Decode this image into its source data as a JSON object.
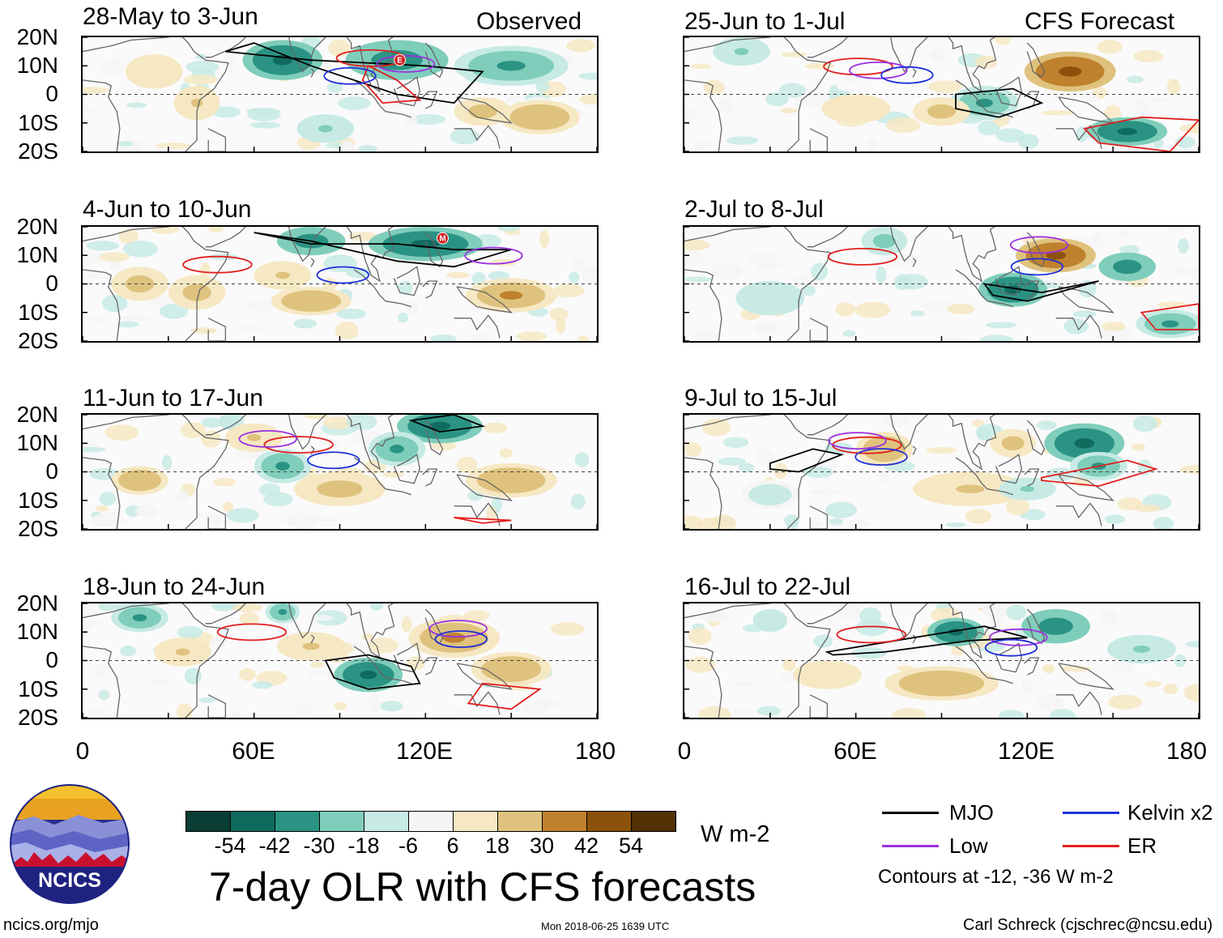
{
  "column_headers": {
    "left": "Observed",
    "right": "CFS Forecast"
  },
  "latitude_labels": [
    "20N",
    "10N",
    "0",
    "10S",
    "20S"
  ],
  "longitude_labels": [
    "0",
    "60E",
    "120E",
    "180"
  ],
  "colorbar": {
    "boundaries": [
      "-54",
      "-42",
      "-30",
      "-18",
      "-6",
      "6",
      "18",
      "30",
      "42",
      "54"
    ],
    "colors": [
      "#0a3d33",
      "#0f6b5e",
      "#2a9384",
      "#7fcdbb",
      "#c7eae5",
      "#f5f5f5",
      "#f6e8c3",
      "#dfc27d",
      "#bf812d",
      "#8c510a",
      "#543005"
    ],
    "units": "W m-2"
  },
  "main_title": "7-day OLR with CFS forecasts",
  "legend": {
    "items": [
      {
        "label": "MJO",
        "color": "#000000"
      },
      {
        "label": "Kelvin x2",
        "color": "#1f2fd8"
      },
      {
        "label": "Low",
        "color": "#9b30e0"
      },
      {
        "label": "ER",
        "color": "#e0201f"
      }
    ],
    "note": "Contours at -12, -36 W m-2"
  },
  "logo_text": "NCICS",
  "footer": {
    "left": "ncics.org/mjo",
    "center": "Mon 2018-06-25 1639 UTC",
    "right": "Carl Schreck (cjschrec@ncsu.edu)"
  },
  "chart_data": {
    "type": "heatmap",
    "title": "7-day OLR with CFS forecasts",
    "x_range": [
      0,
      180
    ],
    "y_range": [
      -20,
      20
    ],
    "panels": [
      {
        "period": "28-May to 3-Jun",
        "source": "Observed",
        "markers": [
          "E"
        ]
      },
      {
        "period": "4-Jun to 10-Jun",
        "source": "Observed",
        "markers": [
          "M"
        ]
      },
      {
        "period": "11-Jun to 17-Jun",
        "source": "Observed",
        "markers": []
      },
      {
        "period": "18-Jun to 24-Jun",
        "source": "Observed",
        "markers": []
      },
      {
        "period": "25-Jun to 1-Jul",
        "source": "CFS Forecast",
        "markers": []
      },
      {
        "period": "2-Jul to 8-Jul",
        "source": "CFS Forecast",
        "markers": []
      },
      {
        "period": "9-Jul to 15-Jul",
        "source": "CFS Forecast",
        "markers": []
      },
      {
        "period": "16-Jul to 22-Jul",
        "source": "CFS Forecast",
        "markers": []
      }
    ]
  }
}
